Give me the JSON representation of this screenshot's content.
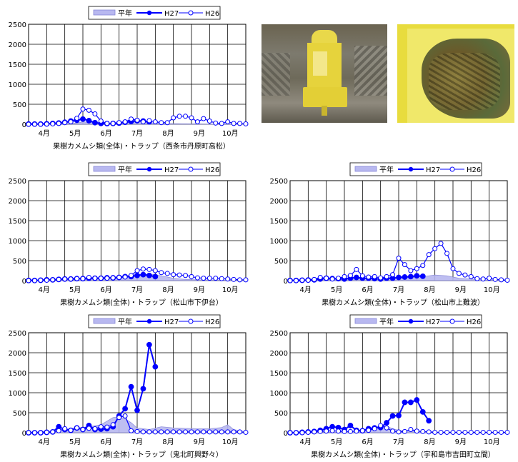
{
  "legend": {
    "avg": "平年",
    "h27": "H27",
    "h26": "H26"
  },
  "colors": {
    "avg_fill": "#b8b8f0",
    "avg_stroke": "#8888d8",
    "series": "#0000ff",
    "grid": "#000000"
  },
  "photos": [
    {
      "name": "yellow-trap-photo",
      "desc_icon": "trap-photo-icon"
    },
    {
      "name": "trap-contents-photo",
      "desc_icon": "trap-photo-icon"
    }
  ],
  "chart_data": [
    {
      "type": "line",
      "title": "果樹カメムシ類(全体)・トラップ（西条市丹原町高松）",
      "month_labels": [
        "4月",
        "5月",
        "6月",
        "7月",
        "8月",
        "9月",
        "10月"
      ],
      "yticks": [
        0,
        500,
        1000,
        1500,
        2000,
        2500
      ],
      "ylim": [
        0,
        2500
      ],
      "x_range": [
        0,
        36
      ],
      "series": [
        {
          "name": "平年",
          "kind": "area",
          "x": [
            0,
            2,
            4,
            6,
            8,
            9,
            10,
            11,
            12,
            14,
            16,
            18,
            19,
            20,
            21,
            22,
            24,
            26,
            28,
            30,
            32,
            34,
            36
          ],
          "values": [
            5,
            5,
            8,
            15,
            30,
            60,
            50,
            40,
            20,
            15,
            30,
            60,
            70,
            40,
            30,
            20,
            15,
            10,
            8,
            5,
            5,
            5,
            5
          ]
        },
        {
          "name": "H27",
          "kind": "filled",
          "x": [
            0,
            1,
            2,
            3,
            4,
            5,
            6,
            7,
            8,
            9,
            10,
            11,
            12,
            13,
            14,
            15,
            16,
            17,
            18,
            19,
            20
          ],
          "values": [
            5,
            5,
            5,
            10,
            20,
            30,
            50,
            80,
            100,
            130,
            90,
            40,
            20,
            15,
            20,
            30,
            50,
            70,
            90,
            80,
            60
          ]
        },
        {
          "name": "H26",
          "kind": "open",
          "x": [
            0,
            1,
            2,
            3,
            4,
            5,
            6,
            7,
            8,
            9,
            10,
            11,
            12,
            13,
            14,
            15,
            16,
            17,
            18,
            19,
            20,
            21,
            22,
            23,
            24,
            25,
            26,
            27,
            28,
            29,
            30,
            31,
            32,
            33,
            34,
            35,
            36
          ],
          "values": [
            0,
            0,
            0,
            5,
            10,
            20,
            40,
            60,
            150,
            380,
            350,
            260,
            80,
            20,
            20,
            40,
            60,
            130,
            100,
            60,
            90,
            60,
            40,
            40,
            160,
            200,
            200,
            160,
            60,
            140,
            80,
            30,
            20,
            60,
            20,
            20,
            10
          ]
        }
      ]
    },
    {
      "type": "line",
      "title": "果樹カメムシ類(全体)・トラップ（松山市下伊台）",
      "month_labels": [
        "4月",
        "5月",
        "6月",
        "7月",
        "8月",
        "9月",
        "10月"
      ],
      "yticks": [
        0,
        500,
        1000,
        1500,
        2000,
        2500
      ],
      "ylim": [
        0,
        2500
      ],
      "x_range": [
        0,
        36
      ],
      "series": [
        {
          "name": "平年",
          "kind": "area",
          "x": [
            0,
            4,
            8,
            12,
            14,
            16,
            18,
            20,
            21,
            22,
            24,
            26,
            28,
            32,
            36
          ],
          "values": [
            10,
            20,
            40,
            60,
            80,
            120,
            150,
            160,
            150,
            120,
            60,
            30,
            20,
            15,
            10
          ]
        },
        {
          "name": "H27",
          "kind": "filled",
          "x": [
            0,
            1,
            2,
            3,
            4,
            5,
            6,
            7,
            8,
            9,
            10,
            11,
            12,
            13,
            14,
            15,
            16,
            17,
            18,
            19,
            20,
            21
          ],
          "values": [
            5,
            5,
            10,
            20,
            20,
            30,
            40,
            40,
            50,
            50,
            60,
            60,
            60,
            70,
            70,
            80,
            100,
            100,
            130,
            150,
            130,
            100
          ]
        },
        {
          "name": "H26",
          "kind": "open",
          "x": [
            0,
            1,
            2,
            3,
            4,
            5,
            6,
            7,
            8,
            9,
            10,
            11,
            12,
            13,
            14,
            15,
            16,
            17,
            18,
            19,
            20,
            21,
            22,
            23,
            24,
            25,
            26,
            27,
            28,
            29,
            30,
            31,
            32,
            33,
            34,
            35,
            36
          ],
          "values": [
            0,
            0,
            10,
            10,
            20,
            30,
            40,
            40,
            50,
            50,
            80,
            60,
            60,
            60,
            70,
            80,
            90,
            130,
            250,
            290,
            280,
            250,
            200,
            180,
            150,
            140,
            130,
            100,
            70,
            60,
            60,
            60,
            50,
            40,
            30,
            20,
            20
          ]
        }
      ]
    },
    {
      "type": "line",
      "title": "果樹カメムシ類(全体)・トラップ（松山市上難波）",
      "month_labels": [
        "4月",
        "5月",
        "6月",
        "7月",
        "8月",
        "9月",
        "10月"
      ],
      "yticks": [
        0,
        500,
        1000,
        1500,
        2000,
        2500
      ],
      "ylim": [
        0,
        2500
      ],
      "x_range": [
        0,
        36
      ],
      "series": [
        {
          "name": "平年",
          "kind": "area",
          "x": [
            0,
            4,
            8,
            12,
            16,
            18,
            20,
            22,
            24,
            26,
            28,
            32,
            36
          ],
          "values": [
            10,
            20,
            30,
            40,
            60,
            70,
            80,
            100,
            140,
            120,
            60,
            20,
            10
          ]
        },
        {
          "name": "H27",
          "kind": "filled",
          "x": [
            0,
            1,
            2,
            3,
            4,
            5,
            6,
            7,
            8,
            9,
            10,
            11,
            12,
            13,
            14,
            15,
            16,
            17,
            18,
            19,
            20,
            21,
            22
          ],
          "values": [
            5,
            5,
            10,
            15,
            20,
            40,
            60,
            50,
            50,
            40,
            60,
            80,
            60,
            60,
            50,
            40,
            60,
            60,
            80,
            90,
            100,
            120,
            110
          ]
        },
        {
          "name": "H26",
          "kind": "open",
          "x": [
            0,
            1,
            2,
            3,
            4,
            5,
            6,
            7,
            8,
            9,
            10,
            11,
            12,
            13,
            14,
            15,
            16,
            17,
            18,
            19,
            20,
            21,
            22,
            23,
            24,
            25,
            26,
            27,
            28,
            29,
            30,
            31,
            32,
            33,
            34,
            35,
            36
          ],
          "values": [
            0,
            0,
            10,
            10,
            30,
            80,
            60,
            40,
            60,
            100,
            130,
            280,
            120,
            90,
            100,
            70,
            100,
            150,
            560,
            400,
            250,
            300,
            380,
            650,
            800,
            930,
            680,
            300,
            180,
            140,
            100,
            50,
            40,
            60,
            30,
            20,
            10
          ]
        }
      ]
    },
    {
      "type": "line",
      "title": "果樹カメムシ類(全体)・トラップ（鬼北町興野々）",
      "month_labels": [
        "4月",
        "5月",
        "6月",
        "7月",
        "8月",
        "9月",
        "10月"
      ],
      "yticks": [
        0,
        500,
        1000,
        1500,
        2000,
        2500
      ],
      "ylim": [
        0,
        2500
      ],
      "x_range": [
        0,
        36
      ],
      "series": [
        {
          "name": "平年",
          "kind": "area",
          "x": [
            0,
            4,
            6,
            8,
            10,
            12,
            14,
            15,
            16,
            17,
            18,
            19,
            20,
            22,
            24,
            26,
            28,
            30,
            32,
            33,
            34,
            36
          ],
          "values": [
            10,
            40,
            80,
            120,
            150,
            200,
            380,
            400,
            350,
            250,
            120,
            100,
            80,
            150,
            120,
            110,
            100,
            100,
            130,
            200,
            80,
            20
          ]
        },
        {
          "name": "H27",
          "kind": "filled",
          "x": [
            0,
            1,
            2,
            3,
            4,
            5,
            6,
            7,
            8,
            9,
            10,
            11,
            12,
            13,
            14,
            15,
            16,
            17,
            18,
            19,
            20,
            21
          ],
          "values": [
            0,
            0,
            0,
            10,
            20,
            150,
            80,
            60,
            120,
            80,
            180,
            80,
            90,
            100,
            150,
            420,
            600,
            1150,
            560,
            1100,
            2200,
            1650
          ]
        },
        {
          "name": "H26",
          "kind": "open",
          "x": [
            0,
            1,
            2,
            3,
            4,
            5,
            6,
            7,
            8,
            9,
            10,
            11,
            12,
            13,
            14,
            15,
            16,
            17,
            18,
            19,
            20,
            21,
            22,
            23,
            24,
            25,
            26,
            27,
            28,
            29,
            30,
            31,
            32,
            33,
            34,
            35,
            36
          ],
          "values": [
            0,
            0,
            0,
            10,
            20,
            50,
            100,
            60,
            120,
            80,
            110,
            100,
            150,
            140,
            200,
            380,
            420,
            50,
            30,
            20,
            20,
            20,
            20,
            20,
            20,
            20,
            20,
            20,
            20,
            20,
            20,
            20,
            20,
            20,
            20,
            20,
            10
          ]
        }
      ]
    },
    {
      "type": "line",
      "title": "果樹カメムシ類(全体)・トラップ（宇和島市吉田町立間）",
      "month_labels": [
        "4月",
        "5月",
        "6月",
        "7月",
        "8月",
        "9月",
        "10月"
      ],
      "yticks": [
        0,
        500,
        1000,
        1500,
        2000,
        2500
      ],
      "ylim": [
        0,
        2500
      ],
      "x_range": [
        0,
        36
      ],
      "series": [
        {
          "name": "平年",
          "kind": "area",
          "x": [
            0,
            4,
            8,
            12,
            14,
            15,
            16,
            17,
            18,
            20,
            22,
            24,
            28,
            32,
            36
          ],
          "values": [
            5,
            10,
            20,
            40,
            80,
            200,
            160,
            100,
            60,
            40,
            30,
            20,
            15,
            10,
            5
          ]
        },
        {
          "name": "H27",
          "kind": "filled",
          "x": [
            0,
            1,
            2,
            3,
            4,
            5,
            6,
            7,
            8,
            9,
            10,
            11,
            12,
            13,
            14,
            15,
            16,
            17,
            18,
            19,
            20,
            21,
            22,
            23
          ],
          "values": [
            0,
            0,
            10,
            20,
            30,
            60,
            100,
            150,
            130,
            80,
            180,
            60,
            50,
            100,
            120,
            130,
            250,
            420,
            430,
            760,
            760,
            820,
            520,
            300
          ]
        },
        {
          "name": "H26",
          "kind": "open",
          "x": [
            0,
            1,
            2,
            3,
            4,
            5,
            6,
            7,
            8,
            9,
            10,
            11,
            12,
            13,
            14,
            15,
            16,
            17,
            18,
            19,
            20,
            21,
            22,
            23,
            24,
            25,
            26,
            27,
            28,
            29,
            30,
            31,
            32,
            33,
            34,
            35,
            36
          ],
          "values": [
            0,
            0,
            0,
            10,
            20,
            30,
            40,
            50,
            40,
            30,
            30,
            40,
            50,
            60,
            100,
            180,
            120,
            40,
            20,
            30,
            80,
            40,
            30,
            20,
            10,
            10,
            10,
            10,
            10,
            10,
            10,
            10,
            10,
            10,
            10,
            10,
            10
          ]
        }
      ]
    }
  ],
  "chart_positions": [
    {
      "left": 0,
      "top": 0
    },
    {
      "left": 0,
      "top": 219
    },
    {
      "left": 366,
      "top": 219
    },
    {
      "left": 0,
      "top": 432
    },
    {
      "left": 366,
      "top": 432
    }
  ]
}
